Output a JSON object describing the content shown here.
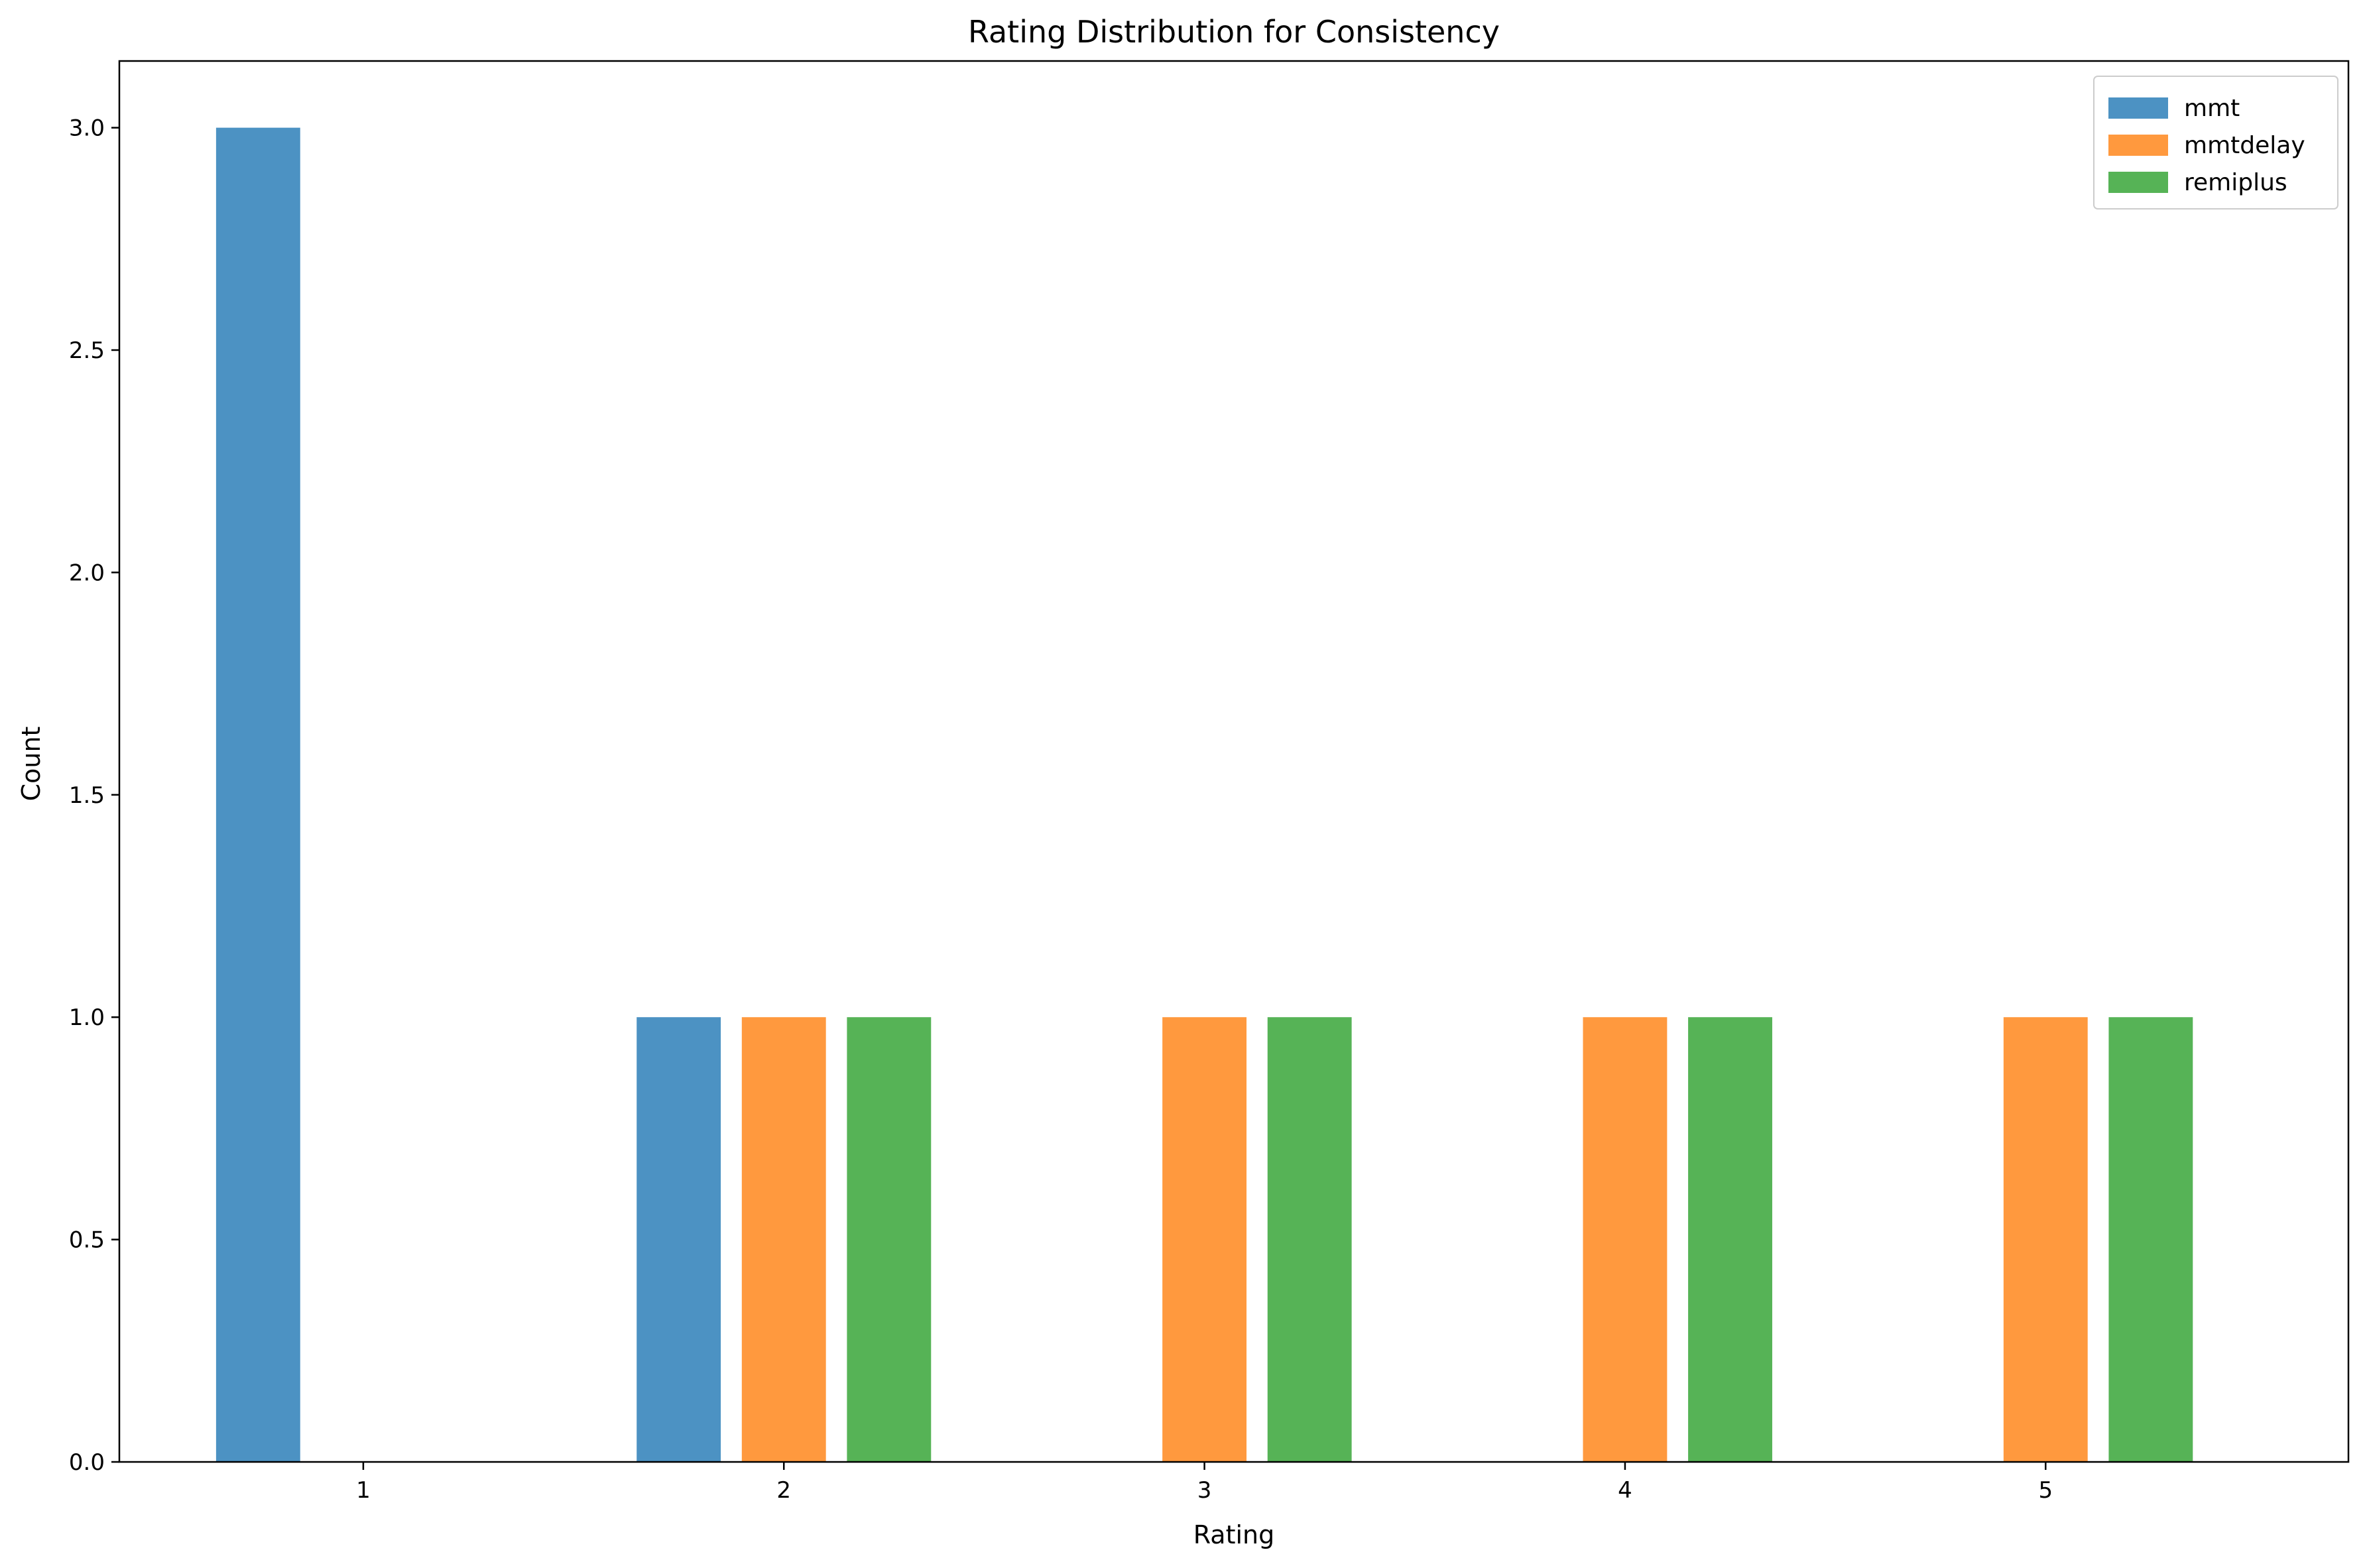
{
  "chart_data": {
    "type": "bar",
    "title": "Rating Distribution for Consistency",
    "xlabel": "Rating",
    "ylabel": "Count",
    "categories": [
      "1",
      "2",
      "3",
      "4",
      "5"
    ],
    "series": [
      {
        "name": "mmt",
        "color": "#4c92c3",
        "values": [
          3,
          1,
          0,
          0,
          0
        ]
      },
      {
        "name": "mmtdelay",
        "color": "#ff993e",
        "values": [
          0,
          1,
          1,
          1,
          1
        ]
      },
      {
        "name": "remiplus",
        "color": "#56b356",
        "values": [
          0,
          1,
          1,
          1,
          1
        ]
      }
    ],
    "ylim": [
      0,
      3.15
    ],
    "yticks": [
      "0.0",
      "0.5",
      "1.0",
      "1.5",
      "2.0",
      "2.5",
      "3.0"
    ],
    "legend_position": "top-right",
    "grid": false
  }
}
